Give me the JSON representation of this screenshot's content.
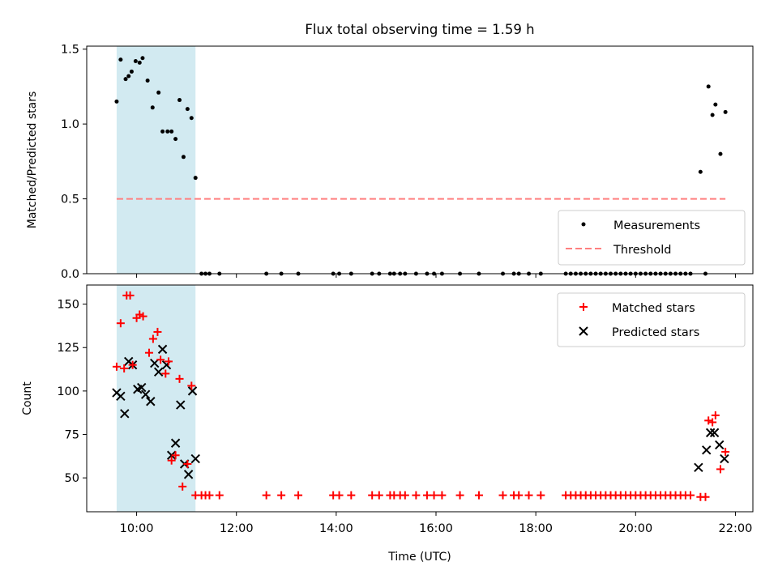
{
  "title": "Flux total observing time = 1.59 h",
  "colors": {
    "shade": "#add8e6",
    "threshold": "#ff7f7f",
    "matched": "#ff0000",
    "predicted": "#000000",
    "measure": "#000000"
  },
  "chart_data": [
    {
      "type": "scatter",
      "ylabel": "Matched/Predicted stars",
      "xlim": [
        9.0,
        22.35
      ],
      "ylim": [
        0,
        1.52
      ],
      "yticks": [
        "0.0",
        "0.5",
        "1.0",
        "1.5"
      ],
      "ytick_values": [
        0,
        0.5,
        1.0,
        1.5
      ],
      "shaded_interval": [
        9.6,
        11.18
      ],
      "threshold": {
        "y": 0.5,
        "x_range": [
          9.6,
          21.8
        ]
      },
      "legend": {
        "position": "lower right",
        "entries": [
          "Measurements",
          "Threshold"
        ]
      },
      "series": [
        {
          "name": "Measurements",
          "x": [
            9.6,
            9.68,
            9.78,
            9.84,
            9.9,
            9.98,
            10.06,
            10.12,
            10.22,
            10.32,
            10.44,
            10.52,
            10.62,
            10.7,
            10.78,
            10.86,
            10.94,
            11.02,
            11.1,
            11.18,
            11.3,
            11.38,
            11.46,
            11.66,
            12.6,
            12.9,
            13.24,
            13.94,
            14.06,
            14.3,
            14.72,
            14.86,
            15.08,
            15.16,
            15.28,
            15.38,
            15.6,
            15.82,
            15.96,
            16.12,
            16.48,
            16.86,
            17.34,
            17.56,
            17.66,
            17.86,
            18.1,
            18.6,
            18.7,
            18.8,
            18.9,
            19.0,
            19.1,
            19.2,
            19.3,
            19.4,
            19.5,
            19.6,
            19.7,
            19.8,
            19.9,
            20.0,
            20.1,
            20.2,
            20.3,
            20.4,
            20.5,
            20.6,
            20.7,
            20.8,
            20.9,
            21.0,
            21.1,
            21.3,
            21.4,
            21.46,
            21.54,
            21.6,
            21.7,
            21.8
          ],
          "y": [
            1.15,
            1.43,
            1.3,
            1.32,
            1.35,
            1.42,
            1.41,
            1.44,
            1.29,
            1.11,
            1.21,
            0.95,
            0.95,
            0.95,
            0.9,
            1.16,
            0.78,
            1.1,
            1.04,
            0.64,
            0,
            0,
            0,
            0,
            0,
            0,
            0,
            0,
            0,
            0,
            0,
            0,
            0,
            0,
            0,
            0,
            0,
            0,
            0,
            0,
            0,
            0,
            0,
            0,
            0,
            0,
            0,
            0,
            0,
            0,
            0,
            0,
            0,
            0,
            0,
            0,
            0,
            0,
            0,
            0,
            0,
            0,
            0,
            0,
            0,
            0,
            0,
            0,
            0,
            0,
            0,
            0,
            0,
            0.68,
            0,
            1.25,
            1.06,
            1.13,
            0.8,
            1.08
          ]
        }
      ]
    },
    {
      "type": "scatter",
      "xlabel": "Time (UTC)",
      "ylabel": "Count",
      "xlim": [
        9.0,
        22.35
      ],
      "ylim": [
        30.5,
        161
      ],
      "yticks": [
        "50",
        "75",
        "100",
        "125",
        "150"
      ],
      "ytick_values": [
        50,
        75,
        100,
        125,
        150
      ],
      "xticks": [
        "10:00",
        "12:00",
        "14:00",
        "16:00",
        "18:00",
        "20:00",
        "22:00"
      ],
      "xtick_values": [
        10,
        12,
        14,
        16,
        18,
        20,
        22
      ],
      "shaded_interval": [
        9.6,
        11.18
      ],
      "legend": {
        "position": "upper right",
        "entries": [
          "Matched stars",
          "Predicted stars"
        ]
      },
      "series": [
        {
          "name": "Matched stars",
          "x": [
            9.6,
            9.68,
            9.75,
            9.8,
            9.87,
            9.92,
            10.0,
            10.06,
            10.13,
            10.25,
            10.33,
            10.42,
            10.48,
            10.58,
            10.64,
            10.7,
            10.78,
            10.86,
            10.92,
            11.02,
            11.1,
            11.18,
            11.3,
            11.38,
            11.46,
            11.66,
            12.6,
            12.9,
            13.24,
            13.94,
            14.06,
            14.3,
            14.72,
            14.86,
            15.08,
            15.16,
            15.28,
            15.38,
            15.6,
            15.82,
            15.96,
            16.12,
            16.48,
            16.86,
            17.34,
            17.56,
            17.66,
            17.86,
            18.1,
            18.6,
            18.7,
            18.8,
            18.9,
            19.0,
            19.1,
            19.2,
            19.3,
            19.4,
            19.5,
            19.6,
            19.7,
            19.8,
            19.9,
            20.0,
            20.1,
            20.2,
            20.3,
            20.4,
            20.5,
            20.6,
            20.7,
            20.8,
            20.9,
            21.0,
            21.1,
            21.3,
            21.4,
            21.46,
            21.54,
            21.6,
            21.7,
            21.8
          ],
          "y": [
            114,
            139,
            113,
            155,
            155,
            115,
            142,
            144,
            143,
            122,
            130,
            134,
            118,
            110,
            117,
            60,
            63,
            107,
            45,
            58,
            103,
            40,
            40,
            40,
            40,
            40,
            40,
            40,
            40,
            40,
            40,
            40,
            40,
            40,
            40,
            40,
            40,
            40,
            40,
            40,
            40,
            40,
            40,
            40,
            40,
            40,
            40,
            40,
            40,
            40,
            40,
            40,
            40,
            40,
            40,
            40,
            40,
            40,
            40,
            40,
            40,
            40,
            40,
            40,
            40,
            40,
            40,
            40,
            40,
            40,
            40,
            40,
            40,
            40,
            40,
            39,
            39,
            83,
            82,
            86,
            55,
            65
          ]
        },
        {
          "name": "Predicted stars",
          "x": [
            9.6,
            9.68,
            9.76,
            9.84,
            9.92,
            10.02,
            10.1,
            10.18,
            10.28,
            10.36,
            10.44,
            10.52,
            10.6,
            10.7,
            10.78,
            10.88,
            10.96,
            11.04,
            11.12,
            11.18,
            21.26,
            21.42,
            21.5,
            21.58,
            21.68,
            21.78
          ],
          "y": [
            99,
            97,
            87,
            117,
            115,
            101,
            102,
            98,
            94,
            116,
            111,
            124,
            115,
            63,
            70,
            92,
            58,
            52,
            100,
            61,
            56,
            66,
            76,
            76,
            69,
            61
          ]
        }
      ]
    }
  ]
}
